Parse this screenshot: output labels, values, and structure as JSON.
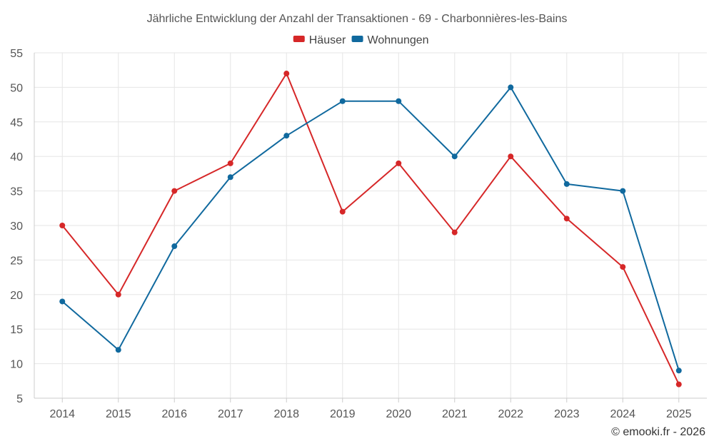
{
  "chart_data": {
    "type": "line",
    "title": "Jährliche Entwicklung der Anzahl der Transaktionen - 69 - Charbonnières-les-Bains",
    "categories": [
      "2014",
      "2015",
      "2016",
      "2017",
      "2018",
      "2019",
      "2020",
      "2021",
      "2022",
      "2023",
      "2024",
      "2025"
    ],
    "series": [
      {
        "name": "Häuser",
        "color": "#d62728",
        "values": [
          30,
          20,
          35,
          39,
          52,
          32,
          39,
          29,
          40,
          31,
          24,
          7
        ]
      },
      {
        "name": "Wohnungen",
        "color": "#10699e",
        "values": [
          19,
          12,
          27,
          37,
          43,
          48,
          48,
          40,
          50,
          36,
          35,
          9
        ]
      }
    ],
    "ylim": [
      5,
      55
    ],
    "yticks": [
      5,
      10,
      15,
      20,
      25,
      30,
      35,
      40,
      45,
      50,
      55
    ],
    "grid": true,
    "legend": "top-center",
    "xlabel": "",
    "ylabel": ""
  },
  "credit": "© emooki.fr - 2026"
}
